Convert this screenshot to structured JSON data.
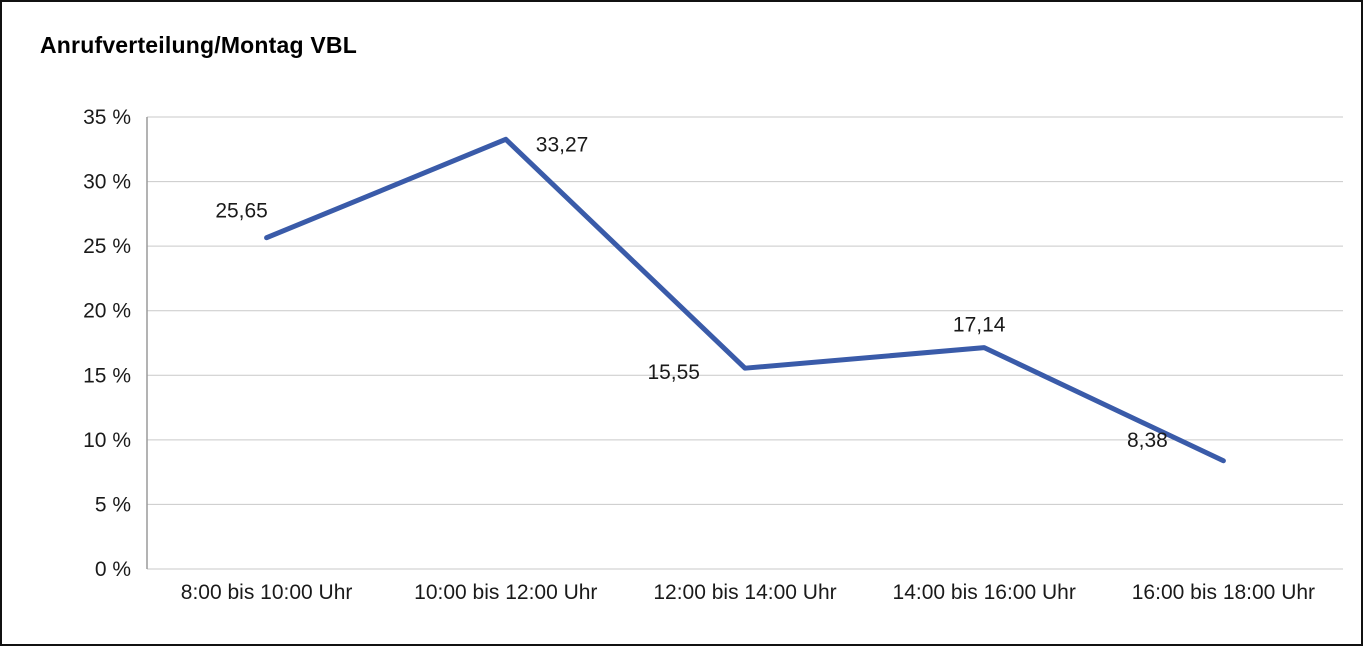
{
  "chart_data": {
    "type": "line",
    "title": "Anrufverteilung/Montag VBL",
    "categories": [
      "8:00 bis 10:00 Uhr",
      "10:00 bis 12:00 Uhr",
      "12:00 bis 14:00 Uhr",
      "14:00 bis 16:00 Uhr",
      "16:00 bis 18:00 Uhr"
    ],
    "values": [
      25.65,
      33.27,
      15.55,
      17.14,
      8.38
    ],
    "value_labels": [
      "25,65",
      "33,27",
      "15,55",
      "17,14",
      "8,38"
    ],
    "ylim": [
      0,
      35
    ],
    "yticks": [
      {
        "value": 35,
        "label": "35 %"
      },
      {
        "value": 30,
        "label": "30 %"
      },
      {
        "value": 25,
        "label": "25 %"
      },
      {
        "value": 20,
        "label": "20 %"
      },
      {
        "value": 15,
        "label": "15 %"
      },
      {
        "value": 10,
        "label": "10 %"
      },
      {
        "value": 5,
        "label": "5 %"
      },
      {
        "value": 0,
        "label": "0 %"
      }
    ],
    "xlabel": "",
    "ylabel": "",
    "grid": true,
    "legend": "none",
    "line_width": 5,
    "colors": {
      "line": "#3a5ba9",
      "grid": "#c9c9c9",
      "axis": "#9a9a9a",
      "text": "#1a1a1a",
      "background": "#ffffff",
      "border": "#111111"
    },
    "layout": {
      "plot_left": 145,
      "plot_right": 1341,
      "plot_top": 115,
      "plot_bottom": 567,
      "x_label_baseline": 597,
      "tick_label_font": 21,
      "data_label_font": 21
    },
    "label_offsets": [
      [
        -25,
        -20,
        "middle"
      ],
      [
        30,
        12,
        "start"
      ],
      [
        -45,
        11,
        "end"
      ],
      [
        -5,
        -16,
        "middle"
      ],
      [
        -76,
        -14,
        "middle"
      ]
    ]
  }
}
